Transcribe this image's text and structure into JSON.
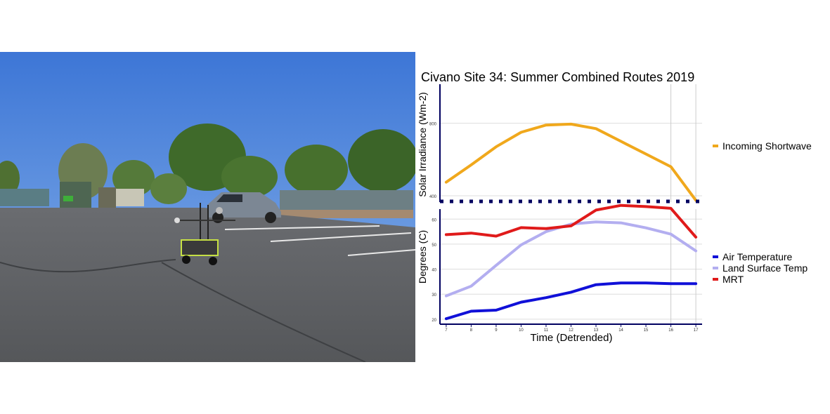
{
  "photo": {
    "subject": "Parking lot with a wheeled cart carrying a sensor mast, SUV, dumpsters, fence and trees under a clear blue sky",
    "colors": {
      "sky": "#4a82d8",
      "asphalt": "#5e6063",
      "trees": "#3f6a2a"
    }
  },
  "chart_data": {
    "type": "line",
    "title": "Civano Site 34: Summer Combined Routes 2019",
    "xlabel": "Time (Detrended)",
    "x": [
      7,
      8,
      9,
      10,
      11,
      12,
      13,
      14,
      15,
      16,
      17
    ],
    "vlines": [
      16,
      17
    ],
    "panels": [
      {
        "ylabel": "Solar Irradiance (Wm-2)",
        "ylim": [
          365,
          1015
        ],
        "yticks": [
          400,
          800
        ],
        "series": [
          {
            "name": "Incoming Shortwave",
            "color": "#f0a81c",
            "values": [
              475,
              570,
              670,
              750,
              790,
              795,
              770,
              700,
              630,
              560,
              375
            ]
          }
        ]
      },
      {
        "ylabel": "Degrees (C)",
        "ylim": [
          18,
          64
        ],
        "yticks": [
          20,
          30,
          40,
          50,
          60
        ],
        "series": [
          {
            "name": "Air Temperature",
            "color": "#1010d8",
            "values": [
              20.2,
              23.2,
              23.6,
              26.8,
              28.6,
              30.8,
              33.8,
              34.5,
              34.5,
              34.2,
              34.2
            ]
          },
          {
            "name": "Land Surface Temp",
            "color": "#b3aef0",
            "values": [
              29.3,
              33.2,
              41.5,
              49.7,
              55.0,
              58.0,
              58.9,
              58.5,
              56.5,
              54.0,
              47.3
            ]
          },
          {
            "name": "MRT",
            "color": "#e01a1a",
            "values": [
              53.8,
              54.4,
              53.2,
              56.6,
              56.2,
              57.3,
              63.6,
              65.5,
              65.0,
              64.3,
              52.8
            ]
          }
        ]
      }
    ]
  }
}
